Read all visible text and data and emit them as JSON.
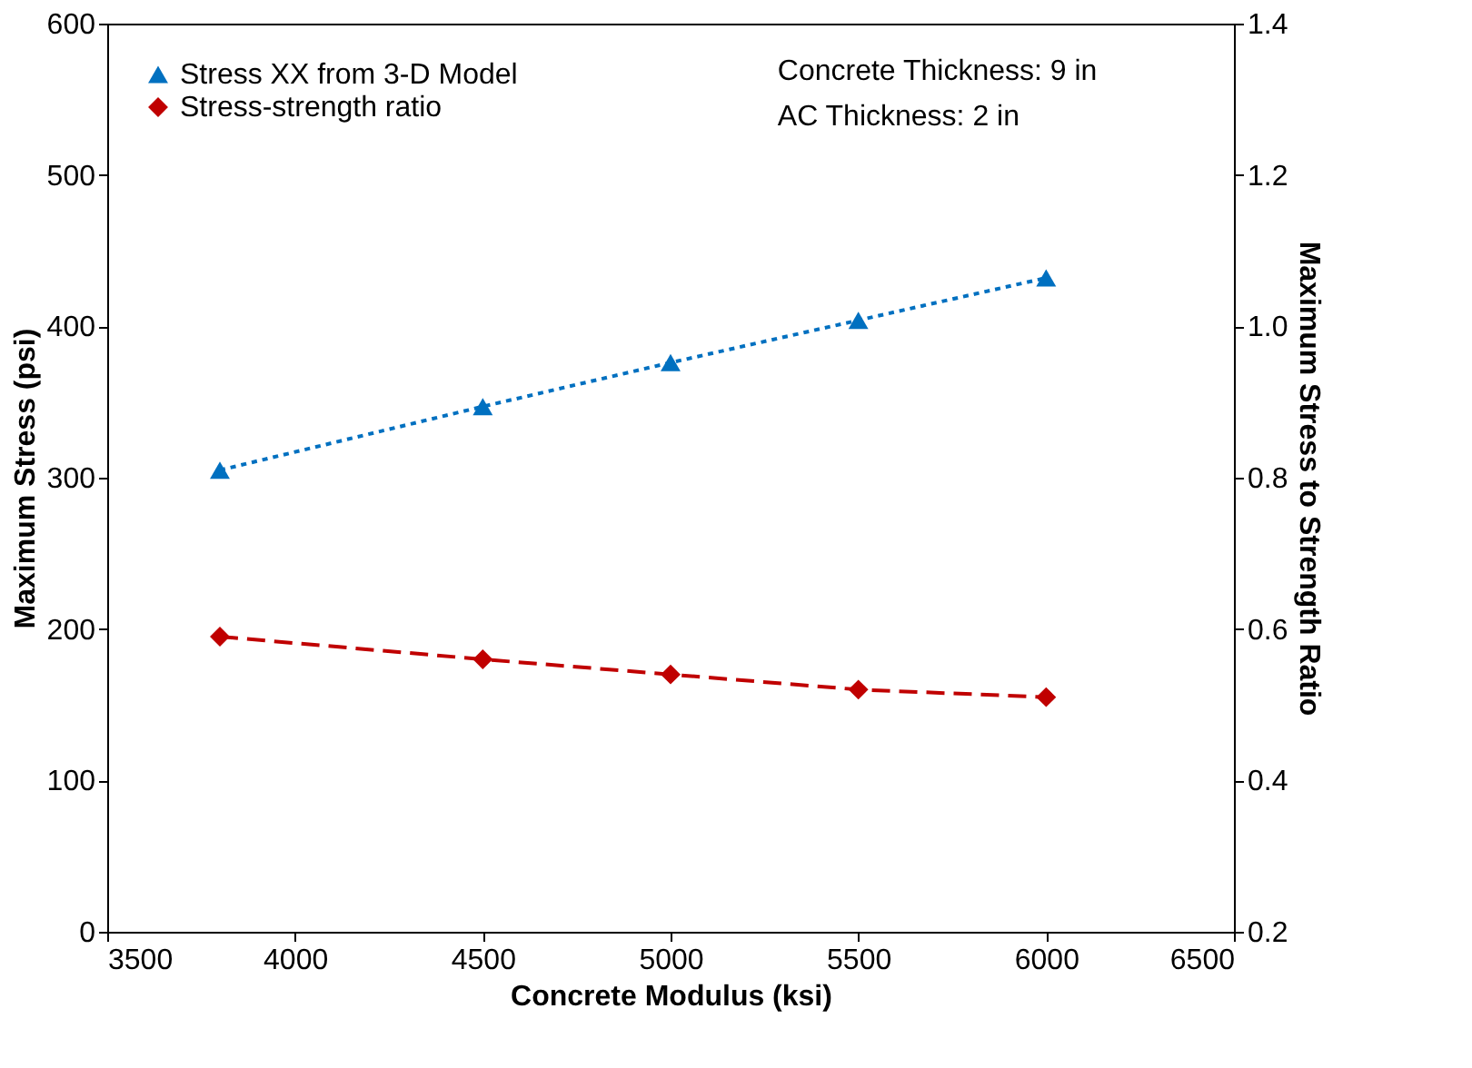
{
  "chart_data": {
    "type": "line",
    "xlabel": "Concrete Modulus (ksi)",
    "ylabel": "Maximum Stress (psi)",
    "y2label": "Maximum Stress to Strength Ratio",
    "x": [
      3800,
      4500,
      5000,
      5500,
      6000
    ],
    "series": [
      {
        "name": "Stress XX from 3-D Model",
        "color": "#0070c0",
        "values": [
          305,
          347,
          376,
          404,
          432
        ],
        "marker": "triangle",
        "line_style": "dotted"
      },
      {
        "name": "Stress-strength ratio",
        "color": "#c00000",
        "values": [
          0.59,
          0.56,
          0.54,
          0.52,
          0.51
        ],
        "marker": "diamond",
        "line_style": "dashed",
        "axis": "y2"
      }
    ],
    "xlim": [
      3500,
      6500
    ],
    "xticks": [
      3500,
      4000,
      4500,
      5000,
      5500,
      6000,
      6500
    ],
    "ylim": [
      0,
      600
    ],
    "yticks": [
      0,
      100,
      200,
      300,
      400,
      500,
      600
    ],
    "y2lim": [
      0.2,
      1.4
    ],
    "y2ticks": [
      {
        "value": 0.2,
        "label": "0.2"
      },
      {
        "value": 0.4,
        "label": "0.4"
      },
      {
        "value": 0.6,
        "label": "0.6"
      },
      {
        "value": 0.8,
        "label": "0.8"
      },
      {
        "value": 1.0,
        "label": "1.0"
      },
      {
        "value": 1.2,
        "label": "1.2"
      },
      {
        "value": 1.4,
        "label": "1.4"
      }
    ],
    "annotations": [
      "Concrete Thickness: 9 in",
      "AC Thickness: 2 in"
    ],
    "legend": "top left",
    "grid": false
  }
}
